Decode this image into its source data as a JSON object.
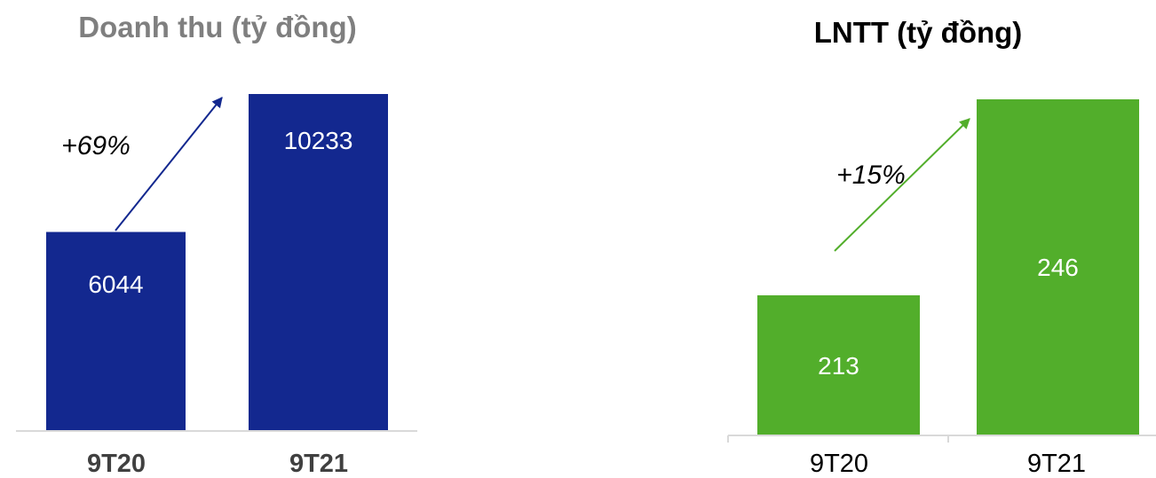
{
  "chart_data": [
    {
      "type": "bar",
      "title": "Doanh thu (tỷ đồng)",
      "categories": [
        "9T20",
        "9T21"
      ],
      "values": [
        6044,
        10233
      ],
      "data_labels": [
        "6044",
        "10233"
      ],
      "annotation": "+69%",
      "bar_color": "#13288F",
      "arrow_color": "#13288F",
      "title_color": "#7F7F7F",
      "label_color": "#FFFFFF",
      "ylim": [
        0,
        10233
      ]
    },
    {
      "type": "bar",
      "title": "LNTT (tỷ đồng)",
      "categories": [
        "9T20",
        "9T21"
      ],
      "values": [
        213,
        246
      ],
      "data_labels": [
        "213",
        "246"
      ],
      "annotation": "+15%",
      "bar_color": "#52AE2B",
      "arrow_color": "#52AE2B",
      "title_color": "#000000",
      "label_color": "#FFFFFF"
    }
  ]
}
